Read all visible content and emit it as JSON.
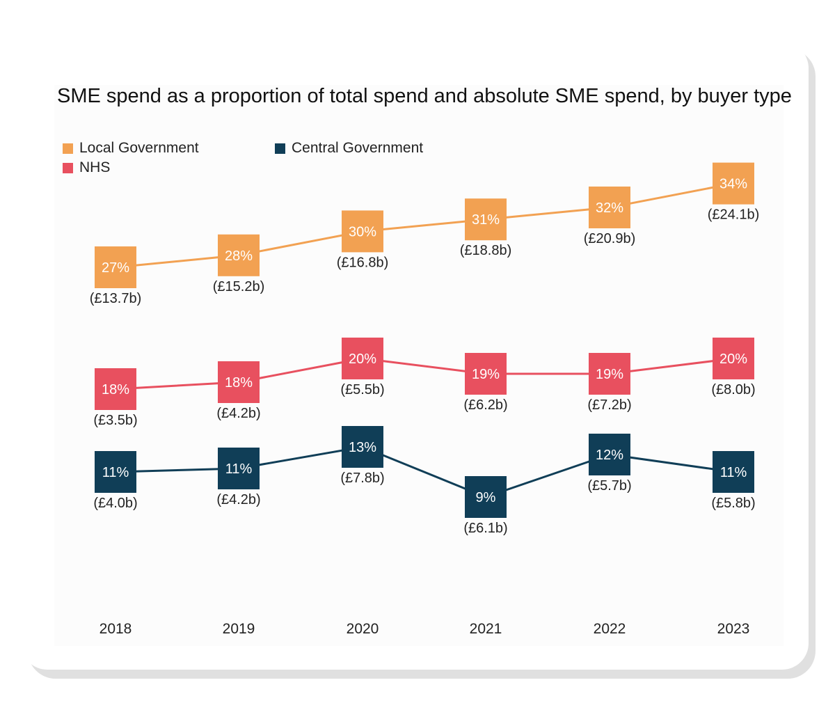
{
  "chart_data": {
    "type": "line",
    "title": "SME spend as a proportion of total spend and absolute SME spend, by buyer type",
    "categories": [
      "2018",
      "2019",
      "2020",
      "2021",
      "2022",
      "2023"
    ],
    "xlabel": "",
    "ylabel": "",
    "legend_position": "top-left",
    "series": [
      {
        "name": "Local Government",
        "color": "#F2A152",
        "percent": [
          27,
          28,
          30,
          31,
          32,
          34
        ],
        "spend_labels": [
          "(£13.7b)",
          "(£15.2b)",
          "(£16.8b)",
          "(£18.8b)",
          "(£20.9b)",
          "(£24.1b)"
        ]
      },
      {
        "name": "NHS",
        "color": "#E8505F",
        "percent": [
          18,
          18,
          20,
          19,
          19,
          20
        ],
        "spend_labels": [
          "(£3.5b)",
          "(£4.2b)",
          "(£5.5b)",
          "(£6.2b)",
          "(£7.2b)",
          "(£8.0b)"
        ]
      },
      {
        "name": "Central Government",
        "color": "#103E57",
        "percent": [
          11,
          11,
          13,
          9,
          12,
          11
        ],
        "spend_labels": [
          "(£4.0b)",
          "(£4.2b)",
          "(£7.8b)",
          "(£6.1b)",
          "(£5.7b)",
          "(£5.8b)"
        ]
      }
    ]
  }
}
